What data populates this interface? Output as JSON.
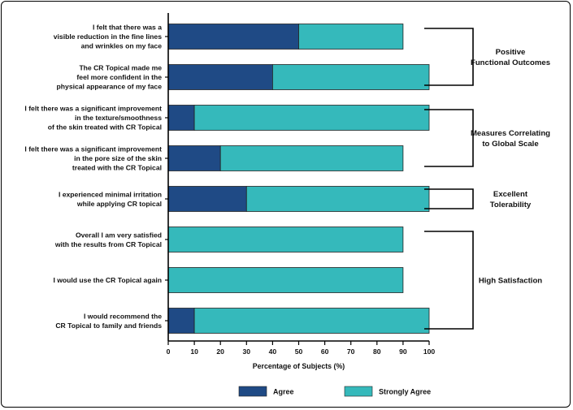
{
  "colors": {
    "agree": "#1f4a85",
    "strongly_agree": "#35b9bb",
    "bar_border": "#222222",
    "axis": "#000000"
  },
  "chart_data": {
    "type": "bar",
    "orientation": "horizontal",
    "stacked": true,
    "categories": [
      "I felt that there was a visible reduction in the fine lines and wrinkles on my face",
      "The CR Topical made me feel more confident in the physical appearance of my face",
      "I felt there was a significant improvement in the texture/smoothness of the skin treated with CR Topical",
      "I felt there was a significant improvement in the pore size of the skin treated with the CR Topical",
      "I experienced minimal irritation while applying CR topical",
      "Overall I am very satisfied with the results from CR Topical",
      "I would use the CR Topical again",
      "I would recommend the CR Topical to family and friends"
    ],
    "category_lines": [
      [
        "I felt that there was a",
        "visible reduction in the fine lines",
        "and wrinkles on my face"
      ],
      [
        "The CR Topical made me",
        "feel more confident in the",
        "physical appearance of my face"
      ],
      [
        "I felt there was a significant improvement",
        "in the texture/smoothness",
        "of the skin treated with CR Topical"
      ],
      [
        "I felt there was a significant  improvement",
        "in the pore size of the skin",
        "treated with the CR Topical"
      ],
      [
        "I experienced minimal irritation",
        "while applying CR topical"
      ],
      [
        "Overall I am very satisfied",
        "with the results from CR Topical"
      ],
      [
        "I would use the CR Topical again"
      ],
      [
        "I would recommend the",
        "CR Topical to family and friends"
      ]
    ],
    "series": [
      {
        "name": "Agree",
        "values": [
          50,
          40,
          10,
          20,
          30,
          0,
          0,
          10
        ]
      },
      {
        "name": "Strongly Agree",
        "values": [
          40,
          60,
          90,
          70,
          70,
          90,
          90,
          90
        ]
      }
    ],
    "xlabel": "Percentage of Subjects (%)",
    "xlim": [
      0,
      100
    ],
    "xticks": [
      "0",
      "10",
      "20",
      "30",
      "40",
      "50",
      "60",
      "70",
      "80",
      "90",
      "100"
    ],
    "legend_position": "bottom",
    "grid": false,
    "groups": [
      {
        "lines": [
          "Positive",
          "Functional Outcomes"
        ],
        "categories": [
          0,
          1
        ]
      },
      {
        "lines": [
          "Measures Correlating",
          "to Global Scale"
        ],
        "categories": [
          2,
          3
        ]
      },
      {
        "lines": [
          "Excellent",
          "Tolerability"
        ],
        "categories": [
          4
        ]
      },
      {
        "lines": [
          "High Satisfaction"
        ],
        "categories": [
          5,
          6,
          7
        ]
      }
    ]
  }
}
